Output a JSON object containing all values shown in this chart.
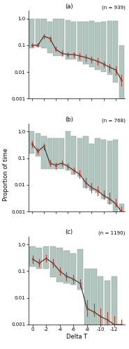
{
  "panels": [
    {
      "label": "(a)",
      "n_label": "(n = 939)",
      "n_bins": 16,
      "bar_tops": [
        1.0,
        1.0,
        1.0,
        0.75,
        1.0,
        1.0,
        0.85,
        0.75,
        0.75,
        0.75,
        0.8,
        0.7,
        0.75,
        0.8,
        0.8,
        0.1
      ],
      "bar_bottoms": [
        0.08,
        0.09,
        0.08,
        0.05,
        0.04,
        0.04,
        0.03,
        0.03,
        0.025,
        0.02,
        0.015,
        0.012,
        0.01,
        0.008,
        0.004,
        0.001
      ],
      "means": [
        0.1,
        0.1,
        0.22,
        0.18,
        0.07,
        0.05,
        0.045,
        0.045,
        0.04,
        0.035,
        0.03,
        0.025,
        0.02,
        0.015,
        0.012,
        0.005
      ],
      "ci_low": [
        0.09,
        0.09,
        0.18,
        0.14,
        0.06,
        0.04,
        0.035,
        0.035,
        0.03,
        0.025,
        0.022,
        0.018,
        0.015,
        0.01,
        0.008,
        0.003
      ],
      "ci_high": [
        0.12,
        0.12,
        0.26,
        0.22,
        0.09,
        0.065,
        0.055,
        0.055,
        0.05,
        0.045,
        0.038,
        0.033,
        0.025,
        0.02,
        0.016,
        0.008
      ]
    },
    {
      "label": "(b)",
      "n_label": "(n = 768)",
      "n_bins": 16,
      "bar_tops": [
        1.0,
        0.85,
        0.65,
        0.55,
        0.55,
        0.55,
        1.0,
        0.65,
        0.55,
        0.65,
        0.35,
        0.55,
        0.5,
        0.45,
        0.5,
        0.002
      ],
      "bar_bottoms": [
        0.15,
        0.12,
        0.04,
        0.04,
        0.04,
        0.04,
        0.035,
        0.025,
        0.02,
        0.008,
        0.006,
        0.005,
        0.003,
        0.002,
        0.001,
        0.001
      ],
      "means": [
        0.35,
        0.18,
        0.28,
        0.065,
        0.055,
        0.065,
        0.05,
        0.035,
        0.025,
        0.012,
        0.008,
        0.006,
        0.004,
        0.003,
        0.002,
        0.001
      ],
      "ci_low": [
        0.25,
        0.14,
        0.22,
        0.05,
        0.04,
        0.05,
        0.04,
        0.028,
        0.018,
        0.008,
        0.005,
        0.004,
        0.003,
        0.002,
        0.0015,
        0.0007
      ],
      "ci_high": [
        0.45,
        0.24,
        0.35,
        0.085,
        0.07,
        0.08,
        0.065,
        0.045,
        0.035,
        0.018,
        0.012,
        0.009,
        0.006,
        0.005,
        0.003,
        0.0015
      ]
    },
    {
      "label": "(c)",
      "n_label": "(n = 1190)",
      "n_bins": 14,
      "bar_tops": [
        0.85,
        0.75,
        0.85,
        0.85,
        0.75,
        0.6,
        0.45,
        0.65,
        0.12,
        0.12,
        0.065,
        0.045,
        0.065,
        0.001
      ],
      "bar_bottoms": [
        0.15,
        0.12,
        0.12,
        0.06,
        0.04,
        0.035,
        0.03,
        0.02,
        0.001,
        0.001,
        0.001,
        0.001,
        0.001,
        0.001
      ],
      "means": [
        0.28,
        0.2,
        0.3,
        0.2,
        0.1,
        0.065,
        0.05,
        0.035,
        0.004,
        0.003,
        0.002,
        0.0015,
        0.001,
        0.001
      ],
      "ci_low": [
        0.2,
        0.15,
        0.22,
        0.14,
        0.07,
        0.045,
        0.035,
        0.025,
        0.002,
        0.002,
        0.001,
        0.001,
        0.0007,
        0.0007
      ],
      "ci_high": [
        0.38,
        0.28,
        0.4,
        0.28,
        0.14,
        0.09,
        0.07,
        0.05,
        0.008,
        0.006,
        0.004,
        0.003,
        0.002,
        0.0015
      ]
    }
  ],
  "bar_color": "#a8c0b8",
  "bar_edge_color": "#888888",
  "dot_color": "#c0392b",
  "line_color": "#2c2c2c",
  "ci_color": "#c0392b",
  "ylabel": "Proportion of time",
  "xlabel": "Delta T",
  "background_color": "#ffffff"
}
